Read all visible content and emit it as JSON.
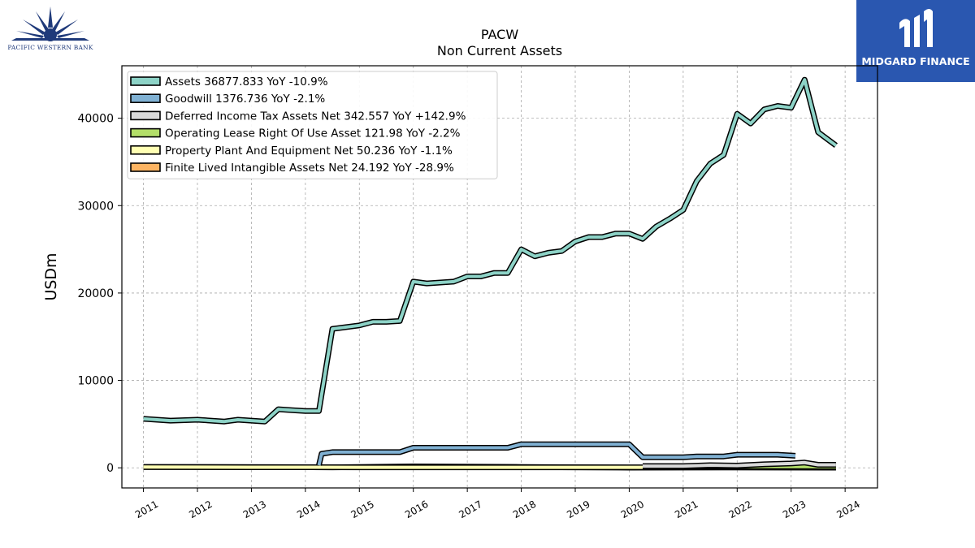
{
  "logos": {
    "left_text": "PACIFIC WESTERN BANK",
    "right_text": "MIDGARD FINANCE",
    "right_bg": "#2a57b0"
  },
  "chart_data": {
    "type": "line",
    "title": "PACW",
    "subtitle": "Non Current  Assets",
    "ylabel": "USDm",
    "xlabel": "",
    "xlim": [
      2010.6,
      2024.6
    ],
    "ylim": [
      -2300,
      46000
    ],
    "yticks": [
      0,
      10000,
      20000,
      30000,
      40000
    ],
    "xticks": [
      "2011",
      "2012",
      "2013",
      "2014",
      "2015",
      "2016",
      "2017",
      "2018",
      "2019",
      "2020",
      "2021",
      "2022",
      "2023",
      "2024"
    ],
    "grid": true,
    "legend_position": "upper-left",
    "series": [
      {
        "name": "Assets  36877.833 YoY -10.9%",
        "color": "#8dd3c7",
        "points": [
          [
            2011.0,
            5600
          ],
          [
            2011.5,
            5400
          ],
          [
            2012.0,
            5500
          ],
          [
            2012.5,
            5300
          ],
          [
            2012.75,
            5500
          ],
          [
            2013.25,
            5300
          ],
          [
            2013.5,
            6700
          ],
          [
            2013.75,
            6600
          ],
          [
            2014.0,
            6500
          ],
          [
            2014.25,
            6500
          ],
          [
            2014.5,
            15900
          ],
          [
            2015.0,
            16300
          ],
          [
            2015.25,
            16700
          ],
          [
            2015.5,
            16700
          ],
          [
            2015.75,
            16800
          ],
          [
            2016.0,
            21300
          ],
          [
            2016.25,
            21100
          ],
          [
            2016.75,
            21300
          ],
          [
            2017.0,
            21900
          ],
          [
            2017.25,
            21900
          ],
          [
            2017.5,
            22300
          ],
          [
            2017.75,
            22300
          ],
          [
            2018.0,
            25000
          ],
          [
            2018.25,
            24200
          ],
          [
            2018.5,
            24600
          ],
          [
            2018.75,
            24800
          ],
          [
            2019.0,
            25900
          ],
          [
            2019.25,
            26400
          ],
          [
            2019.5,
            26400
          ],
          [
            2019.75,
            26800
          ],
          [
            2020.0,
            26800
          ],
          [
            2020.25,
            26200
          ],
          [
            2020.5,
            27600
          ],
          [
            2020.75,
            28500
          ],
          [
            2021.0,
            29500
          ],
          [
            2021.25,
            32800
          ],
          [
            2021.5,
            34800
          ],
          [
            2021.75,
            35800
          ],
          [
            2022.0,
            40500
          ],
          [
            2022.25,
            39400
          ],
          [
            2022.5,
            41000
          ],
          [
            2022.75,
            41400
          ],
          [
            2023.0,
            41200
          ],
          [
            2023.25,
            44400
          ],
          [
            2023.5,
            38400
          ],
          [
            2023.83,
            36878
          ]
        ]
      },
      {
        "name": "Goodwill  1376.736 YoY -2.1%",
        "color": "#80b1d3",
        "points": [
          [
            2014.25,
            300
          ],
          [
            2014.3,
            1600
          ],
          [
            2014.5,
            1800
          ],
          [
            2015.0,
            1800
          ],
          [
            2015.75,
            1800
          ],
          [
            2016.0,
            2300
          ],
          [
            2017.75,
            2300
          ],
          [
            2018.0,
            2700
          ],
          [
            2020.0,
            2700
          ],
          [
            2020.25,
            1200
          ],
          [
            2021.0,
            1200
          ],
          [
            2021.25,
            1300
          ],
          [
            2021.75,
            1300
          ],
          [
            2022.0,
            1500
          ],
          [
            2022.75,
            1500
          ],
          [
            2023.08,
            1377
          ]
        ]
      },
      {
        "name": "Deferred Income Tax Assets Net  342.557 YoY +142.9%",
        "color": "#d9d9d9",
        "points": [
          [
            2020.25,
            200
          ],
          [
            2021.0,
            200
          ],
          [
            2021.5,
            300
          ],
          [
            2022.0,
            250
          ],
          [
            2022.5,
            400
          ],
          [
            2023.0,
            500
          ],
          [
            2023.25,
            600
          ],
          [
            2023.5,
            350
          ],
          [
            2023.83,
            343
          ]
        ]
      },
      {
        "name": "Operating Lease Right Of Use Asset  121.98 YoY -2.2%",
        "color": "#b3de69",
        "points": [
          [
            2020.25,
            180
          ],
          [
            2021.0,
            170
          ],
          [
            2022.0,
            150
          ],
          [
            2023.0,
            130
          ],
          [
            2023.83,
            122
          ]
        ]
      },
      {
        "name": "Property Plant And Equipment Net  50.236 YoY -1.1%",
        "color": "#ffffb3",
        "points": [
          [
            2011.0,
            90
          ],
          [
            2013.0,
            70
          ],
          [
            2015.0,
            60
          ],
          [
            2017.0,
            55
          ],
          [
            2019.0,
            60
          ],
          [
            2021.0,
            55
          ],
          [
            2023.83,
            50
          ]
        ]
      },
      {
        "name": "Finite Lived Intangible Assets Net  24.192 YoY -28.9%",
        "color": "#fdb462",
        "points": [
          [
            2011.0,
            100
          ],
          [
            2013.5,
            80
          ],
          [
            2014.5,
            60
          ],
          [
            2016.0,
            160
          ],
          [
            2018.0,
            100
          ],
          [
            2020.0,
            20
          ],
          [
            2022.0,
            50
          ],
          [
            2023.0,
            35
          ],
          [
            2023.83,
            24
          ]
        ]
      }
    ]
  }
}
